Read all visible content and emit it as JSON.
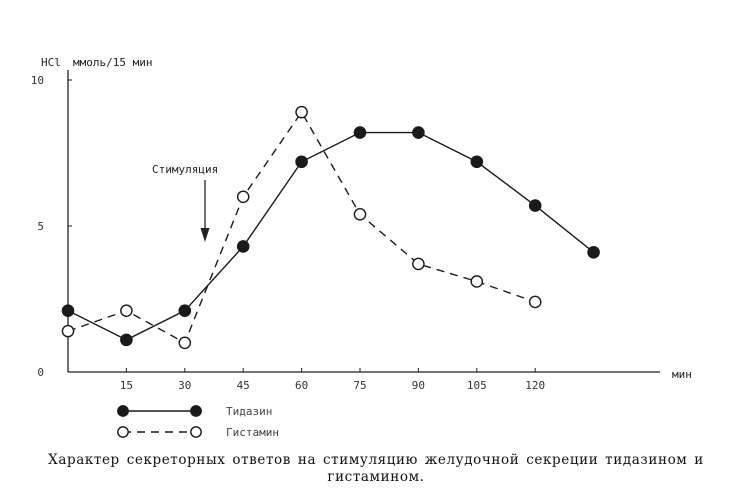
{
  "chart_data": {
    "type": "line",
    "ylabel": "HCl",
    "yunit": "ммоль/15 мин",
    "xunit": "мин",
    "x_tick_labels": [
      "15",
      "30",
      "45",
      "60",
      "75",
      "90",
      "105",
      "120"
    ],
    "y_tick_labels": [
      "0",
      "5",
      "10"
    ],
    "ylim": [
      0,
      10
    ],
    "xlim": [
      0,
      150
    ],
    "grid": false,
    "annotation": "Стимуляция",
    "annotation_x": 30,
    "series": [
      {
        "name": "Тидазин",
        "marker": "filled-circle",
        "line": "solid",
        "x": [
          0,
          15,
          30,
          45,
          60,
          75,
          90,
          105,
          120,
          135
        ],
        "y": [
          2.1,
          1.1,
          2.1,
          4.3,
          7.2,
          8.2,
          8.2,
          7.2,
          5.7,
          4.1
        ]
      },
      {
        "name": "Гистамин",
        "marker": "open-circle",
        "line": "dashed",
        "x": [
          0,
          15,
          30,
          45,
          60,
          75,
          90,
          105,
          120
        ],
        "y": [
          1.4,
          2.1,
          1.0,
          6.0,
          8.9,
          5.4,
          3.7,
          3.1,
          2.4
        ]
      }
    ],
    "legend_position": "bottom-left"
  },
  "caption": {
    "line1": "Характер секреторных ответов на стимуляцию желудочной секреции тидазином и",
    "line2": "гистамином."
  }
}
